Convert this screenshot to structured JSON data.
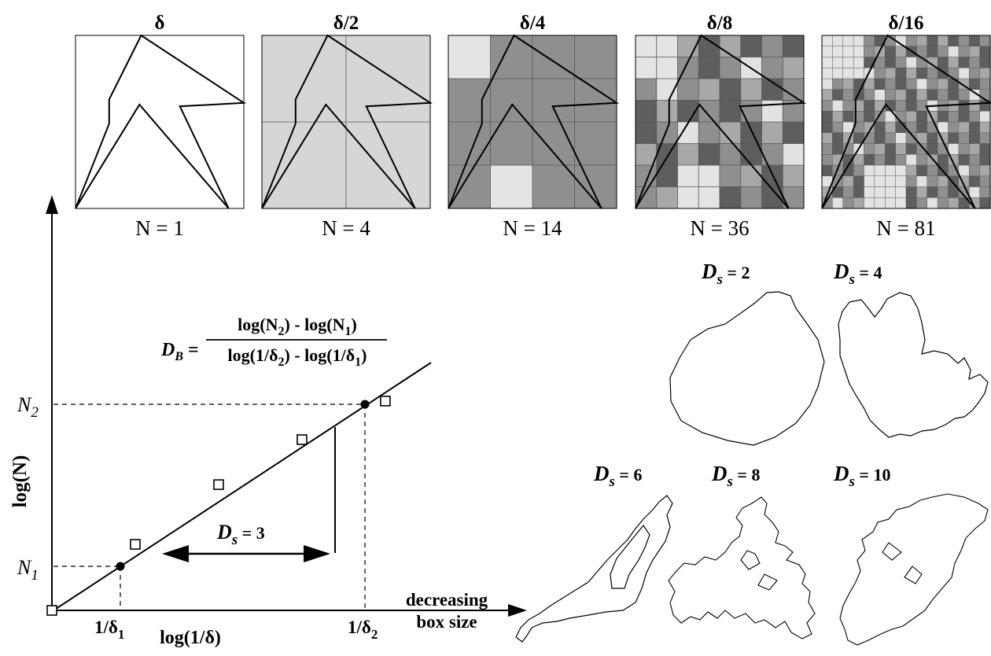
{
  "box_panels": [
    {
      "scale_label": "δ",
      "count_label": "N = 1",
      "subdivisions": 1,
      "count": 1
    },
    {
      "scale_label": "δ/2",
      "count_label": "N = 4",
      "subdivisions": 2,
      "count": 4
    },
    {
      "scale_label": "δ/4",
      "count_label": "N = 14",
      "subdivisions": 4,
      "count": 14
    },
    {
      "scale_label": "δ/8",
      "count_label": "N = 36",
      "subdivisions": 8,
      "count": 36
    },
    {
      "scale_label": "δ/16",
      "count_label": "N = 81",
      "subdivisions": 16,
      "count": 81
    }
  ],
  "plot": {
    "y_axis_label": "log(N)",
    "x_axis_label": "log(1/δ)",
    "x_axis_note_line1": "decreasing",
    "x_axis_note_line2": "box size",
    "n1_main": "N",
    "n1_sub": "1",
    "n2_main": "N",
    "n2_sub": "2",
    "d1_main": "1/δ",
    "d1_sub": "1",
    "d2_main": "1/δ",
    "d2_sub": "2",
    "arrow_label_main": "D",
    "arrow_label_sub": "s",
    "arrow_label_value": " = 3",
    "formula": {
      "lhs_main": "D",
      "lhs_sub": "B",
      "eq": " =",
      "num_a": "log(N",
      "num_a_sub": "2",
      "num_b": ") - log(N",
      "num_b_sub": "1",
      "num_c": ")",
      "den_a": "log(1/δ",
      "den_a_sub": "2",
      "den_b": ") - log(1/δ",
      "den_b_sub": "1",
      "den_c": ")"
    }
  },
  "chart_data": {
    "type": "scatter",
    "title": "",
    "xlabel": "log(1/δ)",
    "ylabel": "log(N)",
    "x_scale": "log",
    "y_scale": "log",
    "series": [
      {
        "x": [
          1,
          2,
          4,
          8,
          16
        ],
        "values": [
          1,
          4,
          14,
          36,
          81
        ]
      }
    ]
  },
  "shapes": [
    {
      "label_main": "D",
      "label_sub": "s",
      "label_value": " = 2"
    },
    {
      "label_main": "D",
      "label_sub": "s",
      "label_value": " = 4"
    },
    {
      "label_main": "D",
      "label_sub": "s",
      "label_value": " = 6"
    },
    {
      "label_main": "D",
      "label_sub": "s",
      "label_value": " = 8"
    },
    {
      "label_main": "D",
      "label_sub": "s",
      "label_value": " = 10"
    }
  ],
  "colors": {
    "box_light": "#d6d6d6",
    "box_mid": "#8f8f8f",
    "box_dark": "#5e5e5e",
    "box_pale": "#e2e2e2",
    "line": "#000000"
  }
}
